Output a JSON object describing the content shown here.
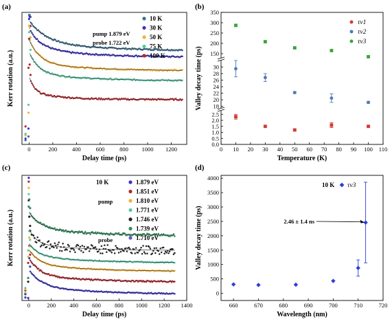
{
  "chart_data": [
    {
      "panel": "(a)",
      "type": "scatter",
      "xlabel": "Delay time (ps)",
      "ylabel": "Kerr rotation (a.u.)",
      "x_ticks": [
        0,
        200,
        400,
        600,
        800,
        1000,
        1200
      ],
      "xlim": [
        -60,
        1330
      ],
      "annotation": [
        "pump  1.879 eV",
        "probe  1.722 eV"
      ],
      "series": [
        {
          "name": "10 K",
          "color": "#3a6f8f",
          "base": 0.7,
          "peak": 0.06,
          "tau": 150,
          "amp": 0.18
        },
        {
          "name": "30 K",
          "color": "#3b33c8",
          "base": 0.655,
          "peak": 0.12,
          "tau": 110,
          "amp": 0.16
        },
        {
          "name": "50 K",
          "color": "#f2b134",
          "base": 0.555,
          "peak": 0.24,
          "tau": 90,
          "amp": 0.18
        },
        {
          "name": "75 K",
          "color": "#57c7a6",
          "base": 0.48,
          "peak": 0.3,
          "tau": 80,
          "amp": 0.16
        },
        {
          "name": "100 K",
          "color": "#b8262a",
          "base": 0.34,
          "peak": 0.58,
          "tau": 40,
          "amp": 0.12
        }
      ]
    },
    {
      "panel": "(b)",
      "type": "scatter",
      "xlabel": "Temperature (K)",
      "ylabel": "Valley decay time (ps)",
      "x_ticks": [
        0,
        10,
        20,
        30,
        40,
        50,
        60,
        70,
        80,
        90,
        100,
        110
      ],
      "xlim": [
        0,
        110
      ],
      "y_segments": [
        {
          "range": [
            0,
            2.8
          ],
          "ticks": [
            0.0,
            0.5,
            1.0,
            1.5,
            2.0,
            2.5
          ],
          "labels": [
            "0.0",
            "0.5",
            "1.0",
            "1.5",
            "2.0",
            "2.5"
          ]
        },
        {
          "range": [
            17.5,
            32
          ],
          "ticks": [
            18,
            20,
            22,
            24,
            26,
            28,
            30
          ],
          "labels": [
            "18",
            "20",
            "22",
            "24",
            "26",
            "28",
            "30"
          ]
        },
        {
          "range": [
            130,
            350
          ],
          "ticks": [
            150,
            200,
            250,
            300,
            350
          ],
          "labels": [
            "150",
            "200",
            "250",
            "300",
            "350"
          ]
        }
      ],
      "series": [
        {
          "name": "τv1",
          "color": "#d63a33",
          "marker": "square",
          "segment": 0,
          "x": [
            10,
            30,
            50,
            75,
            100
          ],
          "y": [
            2.3,
            1.5,
            1.2,
            1.6,
            1.5
          ],
          "err": [
            0.2,
            0.07,
            0.08,
            0.2,
            0.08
          ]
        },
        {
          "name": "τv2",
          "color": "#4d7ab5",
          "marker": "circle",
          "segment": 1,
          "x": [
            10,
            30,
            50,
            75,
            100
          ],
          "y": [
            29.5,
            26.8,
            22.2,
            20.5,
            19.2
          ],
          "err": [
            2.5,
            1.2,
            0.3,
            1.3,
            0.3
          ]
        },
        {
          "name": "τv3",
          "color": "#3aa63a",
          "marker": "square",
          "segment": 2,
          "x": [
            10,
            30,
            50,
            75,
            100
          ],
          "y": [
            287,
            208,
            178,
            165,
            135
          ],
          "err": [
            6,
            5,
            4,
            4,
            4
          ]
        }
      ]
    },
    {
      "panel": "(c)",
      "type": "scatter",
      "xlabel": "Delay time (ps)",
      "ylabel": "Kerr rotation (a.u.)",
      "x_ticks": [
        0,
        200,
        400,
        600,
        800,
        1000,
        1200,
        1400
      ],
      "xlim": [
        -60,
        1400
      ],
      "annotation": [
        "10 K",
        "pump",
        "probe"
      ],
      "series": [
        {
          "name": "1.879 eV",
          "color": "#3b33c8",
          "base": 0.045,
          "peak": 0.02,
          "tau": 120,
          "amp": 0.14,
          "noise": 0.004
        },
        {
          "name": "1.851 eV",
          "color": "#b8262a",
          "base": 0.145,
          "peak": 0.3,
          "tau": 90,
          "amp": 0.14,
          "noise": 0.006
        },
        {
          "name": "1.810 eV",
          "color": "#f2b134",
          "base": 0.23,
          "peak": 0.35,
          "tau": 90,
          "amp": 0.12,
          "noise": 0.005
        },
        {
          "name": "1.771 eV",
          "color": "#57c7a6",
          "base": 0.3,
          "peak": 0.4,
          "tau": 80,
          "amp": 0.1,
          "noise": 0.005
        },
        {
          "name": "1.746 eV",
          "color": "#222222",
          "base": 0.4,
          "peak": 0.15,
          "tau": 60,
          "amp": 0.12,
          "noise": 0.035
        },
        {
          "name": "1.739 eV",
          "color": "#2f8a5a",
          "base": 0.515,
          "peak": 0.18,
          "tau": 100,
          "amp": 0.14,
          "noise": 0.01
        },
        {
          "name": "1.710 eV",
          "color": "#6a5acd",
          "base": 0.0,
          "peak": 0.0,
          "tau": 1,
          "amp": 0.0,
          "noise": 0,
          "hidden_curve": true
        }
      ]
    },
    {
      "panel": "(d)",
      "type": "scatter",
      "xlabel": "Wavelength (nm)",
      "ylabel": "Valley decay time (ps)",
      "x_ticks": [
        660,
        670,
        680,
        690,
        700,
        710,
        720
      ],
      "y_ticks": [
        0,
        500,
        1000,
        1500,
        2000,
        2500,
        3000,
        3500,
        4000
      ],
      "xlim": [
        655,
        720
      ],
      "ylim": [
        -250,
        4100
      ],
      "annotation_text": "2.46 ± 1.4 ns",
      "legend_prefix": "10 K",
      "series": [
        {
          "name": "τv3",
          "color": "#2a3fd6",
          "marker": "diamond",
          "x": [
            660,
            670,
            685,
            700,
            710,
            713
          ],
          "y": [
            310,
            290,
            300,
            430,
            880,
            2460
          ],
          "err": [
            0,
            0,
            0,
            0,
            280,
            1400
          ]
        }
      ]
    }
  ]
}
